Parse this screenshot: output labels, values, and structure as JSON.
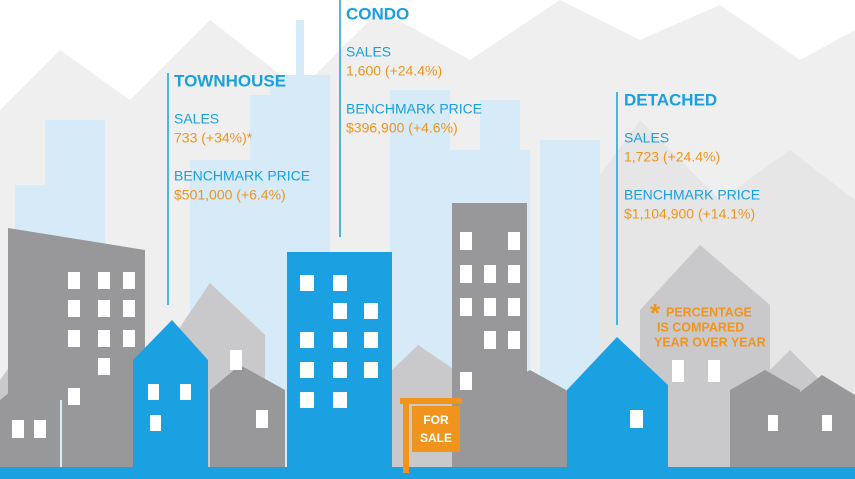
{
  "sections": [
    {
      "title": "TOWNHOUSE",
      "sales_label": "SALES",
      "sales_value": "733 (+34%)*",
      "price_label": "BENCHMARK PRICE",
      "price_value": "$501,000 (+6.4%)"
    },
    {
      "title": "CONDO",
      "sales_label": "SALES",
      "sales_value": "1,600 (+24.4%)",
      "price_label": "BENCHMARK PRICE",
      "price_value": "$396,900 (+4.6%)"
    },
    {
      "title": "DETACHED",
      "sales_label": "SALES",
      "sales_value": "1,723 (+24.4%)",
      "price_label": "BENCHMARK PRICE",
      "price_value": "$1,104,900 (+14.1%)"
    }
  ],
  "footnote": {
    "marker": "*",
    "lines": [
      "PERCENTAGE",
      "IS COMPARED",
      "YEAR OVER YEAR"
    ]
  },
  "sign": [
    "FOR",
    "SALE"
  ]
}
